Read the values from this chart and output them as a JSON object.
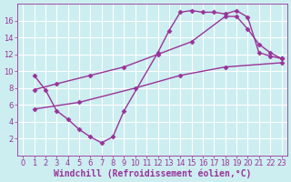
{
  "bg_color": "#cceef0",
  "grid_color": "#aadddd",
  "line_color": "#993399",
  "marker": "D",
  "markersize": 2.5,
  "linewidth": 1.0,
  "xlabel": "Windchill (Refroidissement éolien,°C)",
  "xlim": [
    -0.5,
    23.5
  ],
  "ylim": [
    0,
    18
  ],
  "xticks": [
    0,
    1,
    2,
    3,
    4,
    5,
    6,
    7,
    8,
    9,
    10,
    11,
    12,
    13,
    14,
    15,
    16,
    17,
    18,
    19,
    20,
    21,
    22,
    23
  ],
  "yticks": [
    2,
    4,
    6,
    8,
    10,
    12,
    14,
    16
  ],
  "lines": [
    {
      "x": [
        1,
        2,
        3,
        4,
        5,
        6,
        7,
        8,
        9,
        12,
        13,
        14,
        15,
        16,
        17,
        18,
        19,
        20,
        21,
        22,
        23
      ],
      "y": [
        9.5,
        7.8,
        5.3,
        4.3,
        3.1,
        2.2,
        1.5,
        2.2,
        5.3,
        12.2,
        14.8,
        17.0,
        17.2,
        17.0,
        17.0,
        16.8,
        17.2,
        16.4,
        12.2,
        11.8,
        11.5
      ]
    },
    {
      "x": [
        1,
        3,
        6,
        9,
        12,
        15,
        18,
        19,
        20,
        21,
        22,
        23
      ],
      "y": [
        7.8,
        8.5,
        9.5,
        10.5,
        12.0,
        13.5,
        16.5,
        16.5,
        15.0,
        13.2,
        12.2,
        11.5
      ]
    },
    {
      "x": [
        1,
        5,
        10,
        14,
        18,
        23
      ],
      "y": [
        5.5,
        6.3,
        8.0,
        9.5,
        10.5,
        11.0
      ]
    }
  ],
  "xlabel_fontsize": 7,
  "tick_fontsize": 6
}
